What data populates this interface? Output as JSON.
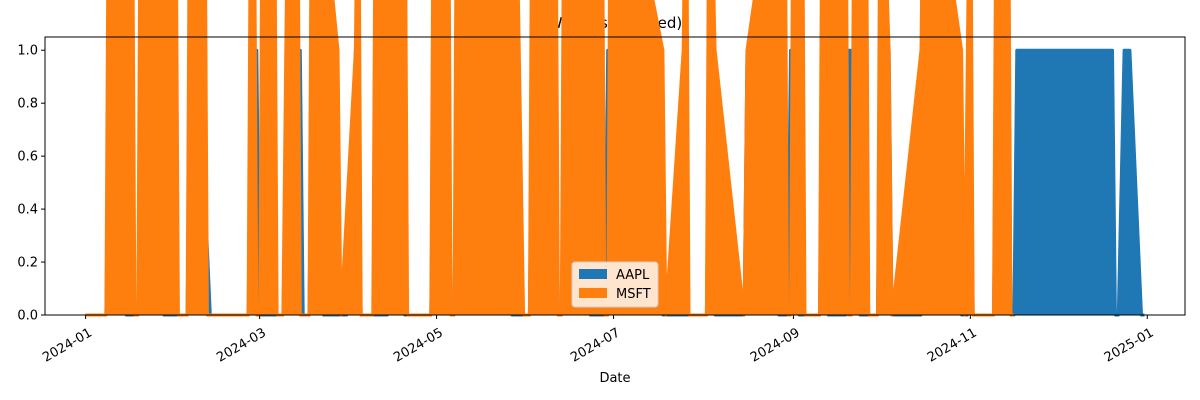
{
  "chart_data": {
    "type": "area",
    "stacked": true,
    "title": "Weights (stacked)",
    "xlabel": "Date",
    "ylabel": "",
    "xlim": [
      "2023-12-18",
      "2025-01-14"
    ],
    "ylim": [
      0,
      1.05
    ],
    "x_ticks": [
      "2024-01-01",
      "2024-03-01",
      "2024-05-01",
      "2024-07-01",
      "2024-09-01",
      "2024-11-01",
      "2025-01-01"
    ],
    "x_tick_labels": [
      "2024-01",
      "2024-03",
      "2024-05",
      "2024-07",
      "2024-09",
      "2024-11",
      "2025-01"
    ],
    "y_ticks": [
      0,
      0.2,
      0.4,
      0.6,
      0.8,
      1.0
    ],
    "y_tick_labels": [
      "0.0",
      "0.2",
      "0.4",
      "0.6",
      "0.8",
      "1.0"
    ],
    "grid": false,
    "legend_position": "bottom-center",
    "series": [
      {
        "name": "AAPL",
        "color": "#1f77b4",
        "points": [
          [
            "2024-01-01",
            0
          ],
          [
            "2024-01-08",
            0
          ],
          [
            "2024-01-09",
            1
          ],
          [
            "2024-01-12",
            1
          ],
          [
            "2024-01-15",
            0
          ],
          [
            "2024-01-19",
            0
          ],
          [
            "2024-01-20",
            1
          ],
          [
            "2024-01-26",
            1
          ],
          [
            "2024-01-28",
            0
          ],
          [
            "2024-02-05",
            0
          ],
          [
            "2024-02-06",
            1
          ],
          [
            "2024-02-09",
            1
          ],
          [
            "2024-02-13",
            0
          ],
          [
            "2024-02-26",
            0
          ],
          [
            "2024-02-27",
            1
          ],
          [
            "2024-02-29",
            1
          ],
          [
            "2024-03-01",
            0
          ],
          [
            "2024-03-09",
            0
          ],
          [
            "2024-03-11",
            1
          ],
          [
            "2024-03-15",
            1
          ],
          [
            "2024-03-16",
            0
          ],
          [
            "2024-03-18",
            0
          ],
          [
            "2024-03-19",
            1
          ],
          [
            "2024-03-22",
            1
          ],
          [
            "2024-03-23",
            0
          ],
          [
            "2024-03-31",
            0
          ],
          [
            "2024-04-03",
            1
          ],
          [
            "2024-04-05",
            0
          ],
          [
            "2024-04-14",
            0
          ],
          [
            "2024-04-15",
            1
          ],
          [
            "2024-04-19",
            1
          ],
          [
            "2024-04-20",
            0
          ],
          [
            "2024-04-29",
            0
          ],
          [
            "2024-04-30",
            1
          ],
          [
            "2024-05-05",
            1
          ],
          [
            "2024-05-06",
            0
          ],
          [
            "2024-05-07",
            0
          ],
          [
            "2024-05-08",
            1
          ],
          [
            "2024-05-26",
            1
          ],
          [
            "2024-05-27",
            0
          ],
          [
            "2024-06-02",
            0
          ],
          [
            "2024-06-03",
            1
          ],
          [
            "2024-06-11",
            1
          ],
          [
            "2024-06-12",
            0
          ],
          [
            "2024-06-13",
            0
          ],
          [
            "2024-06-14",
            1
          ],
          [
            "2024-06-22",
            1
          ],
          [
            "2024-06-23",
            0
          ],
          [
            "2024-06-28",
            0
          ],
          [
            "2024-06-29",
            1
          ],
          [
            "2024-07-17",
            1
          ],
          [
            "2024-07-18",
            0
          ],
          [
            "2024-08-02",
            0
          ],
          [
            "2024-08-03",
            1
          ],
          [
            "2024-08-05",
            0
          ],
          [
            "2024-08-15",
            0
          ],
          [
            "2024-08-16",
            1
          ],
          [
            "2024-08-26",
            1
          ],
          [
            "2024-08-27",
            0
          ],
          [
            "2024-08-30",
            0
          ],
          [
            "2024-08-31",
            1
          ],
          [
            "2024-09-02",
            1
          ],
          [
            "2024-09-03",
            0
          ],
          [
            "2024-09-10",
            0
          ],
          [
            "2024-09-11",
            1
          ],
          [
            "2024-09-13",
            0
          ],
          [
            "2024-09-19",
            0
          ],
          [
            "2024-09-20",
            1
          ],
          [
            "2024-09-23",
            1
          ],
          [
            "2024-09-24",
            0
          ],
          [
            "2024-09-30",
            0
          ],
          [
            "2024-10-01",
            1
          ],
          [
            "2024-10-04",
            1
          ],
          [
            "2024-10-05",
            0
          ],
          [
            "2024-10-15",
            0
          ],
          [
            "2024-10-16",
            1
          ],
          [
            "2024-10-28",
            1
          ],
          [
            "2024-10-29",
            0
          ],
          [
            "2024-10-31",
            0
          ],
          [
            "2024-11-01",
            1
          ],
          [
            "2024-11-02",
            0
          ],
          [
            "2024-11-09",
            0
          ],
          [
            "2024-11-10",
            1
          ],
          [
            "2024-11-14",
            1
          ],
          [
            "2024-11-15",
            0
          ],
          [
            "2024-11-16",
            0
          ],
          [
            "2024-11-17",
            1
          ],
          [
            "2024-12-20",
            1
          ],
          [
            "2024-12-21",
            0
          ],
          [
            "2024-12-22",
            0
          ],
          [
            "2024-12-24",
            1
          ],
          [
            "2024-12-26",
            1
          ],
          [
            "2024-12-30",
            0
          ],
          [
            "2024-12-31",
            0
          ]
        ]
      },
      {
        "name": "MSFT",
        "color": "#ff7f0e",
        "points": [
          [
            "2024-01-01",
            0
          ],
          [
            "2024-01-08",
            0
          ],
          [
            "2024-01-09",
            1
          ],
          [
            "2024-01-17",
            1
          ],
          [
            "2024-01-18",
            0
          ],
          [
            "2024-01-19",
            0
          ],
          [
            "2024-01-20",
            1
          ],
          [
            "2024-02-01",
            1
          ],
          [
            "2024-02-02",
            0
          ],
          [
            "2024-02-05",
            0
          ],
          [
            "2024-02-06",
            1
          ],
          [
            "2024-02-11",
            1
          ],
          [
            "2024-02-12",
            0
          ],
          [
            "2024-02-26",
            0
          ],
          [
            "2024-02-27",
            1
          ],
          [
            "2024-02-28",
            1
          ],
          [
            "2024-02-29",
            0
          ],
          [
            "2024-03-01",
            0
          ],
          [
            "2024-03-02",
            1
          ],
          [
            "2024-03-06",
            1
          ],
          [
            "2024-03-07",
            0
          ],
          [
            "2024-03-09",
            0
          ],
          [
            "2024-03-11",
            1
          ],
          [
            "2024-03-14",
            1
          ],
          [
            "2024-03-15",
            0
          ],
          [
            "2024-03-18",
            0
          ],
          [
            "2024-03-19",
            1
          ],
          [
            "2024-03-28",
            1
          ],
          [
            "2024-03-29",
            0
          ],
          [
            "2024-04-03",
            0
          ],
          [
            "2024-04-04",
            1
          ],
          [
            "2024-04-05",
            0
          ],
          [
            "2024-04-09",
            0
          ],
          [
            "2024-04-10",
            1
          ],
          [
            "2024-04-20",
            1
          ],
          [
            "2024-04-21",
            0
          ],
          [
            "2024-04-29",
            0
          ],
          [
            "2024-04-30",
            1
          ],
          [
            "2024-05-05",
            1
          ],
          [
            "2024-05-06",
            0
          ],
          [
            "2024-05-07",
            0
          ],
          [
            "2024-05-08",
            1
          ],
          [
            "2024-05-28",
            1
          ],
          [
            "2024-05-31",
            0
          ],
          [
            "2024-06-02",
            0
          ],
          [
            "2024-06-03",
            1
          ],
          [
            "2024-06-11",
            1
          ],
          [
            "2024-06-12",
            0
          ],
          [
            "2024-06-13",
            0
          ],
          [
            "2024-06-14",
            1
          ],
          [
            "2024-06-27",
            1
          ],
          [
            "2024-06-28",
            0
          ],
          [
            "2024-06-29",
            0
          ],
          [
            "2024-06-30",
            1
          ],
          [
            "2024-07-18",
            1
          ],
          [
            "2024-07-19",
            0
          ],
          [
            "2024-07-25",
            0
          ],
          [
            "2024-07-26",
            1
          ],
          [
            "2024-07-27",
            0
          ],
          [
            "2024-08-02",
            0
          ],
          [
            "2024-08-03",
            1
          ],
          [
            "2024-08-05",
            0
          ],
          [
            "2024-08-15",
            0
          ],
          [
            "2024-08-16",
            1
          ],
          [
            "2024-08-29",
            1
          ],
          [
            "2024-08-30",
            0
          ],
          [
            "2024-08-31",
            0
          ],
          [
            "2024-09-01",
            1
          ],
          [
            "2024-09-04",
            1
          ],
          [
            "2024-09-05",
            0
          ],
          [
            "2024-09-10",
            0
          ],
          [
            "2024-09-11",
            1
          ],
          [
            "2024-09-19",
            1
          ],
          [
            "2024-09-20",
            0
          ],
          [
            "2024-09-21",
            0
          ],
          [
            "2024-09-22",
            1
          ],
          [
            "2024-09-26",
            1
          ],
          [
            "2024-09-27",
            0
          ],
          [
            "2024-09-30",
            0
          ],
          [
            "2024-10-01",
            1
          ],
          [
            "2024-10-04",
            1
          ],
          [
            "2024-10-05",
            0
          ],
          [
            "2024-10-15",
            0
          ],
          [
            "2024-10-16",
            1
          ],
          [
            "2024-10-29",
            1
          ],
          [
            "2024-10-30",
            0
          ],
          [
            "2024-10-31",
            0
          ],
          [
            "2024-11-01",
            1
          ],
          [
            "2024-11-02",
            0
          ],
          [
            "2024-11-09",
            0
          ],
          [
            "2024-11-10",
            1
          ],
          [
            "2024-11-14",
            1
          ],
          [
            "2024-11-15",
            0
          ],
          [
            "2024-11-16",
            0
          ],
          [
            "2024-11-17",
            1
          ],
          [
            "2024-12-20",
            1
          ],
          [
            "2024-12-21",
            0
          ],
          [
            "2024-12-22",
            0
          ],
          [
            "2024-12-24",
            1
          ],
          [
            "2024-12-26",
            1
          ],
          [
            "2024-12-30",
            0
          ],
          [
            "2024-12-31",
            0
          ]
        ]
      }
    ]
  }
}
